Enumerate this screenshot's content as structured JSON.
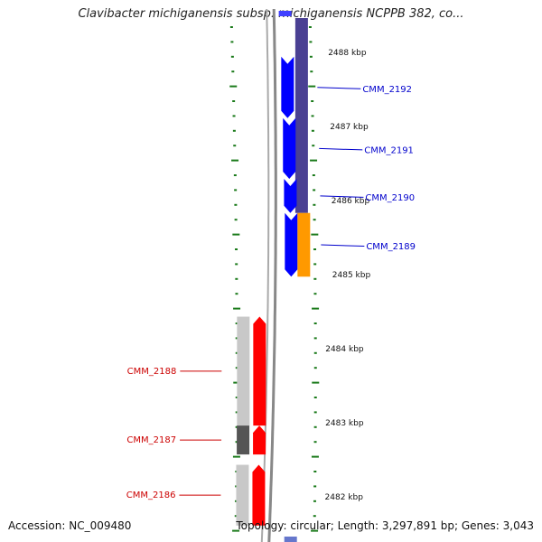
{
  "title": "Clavibacter michiganensis subsp. michiganensis NCPPB 382, co...",
  "footer": {
    "accession": "Accession: NC_009480",
    "summary": "Topology: circular; Length: 3,297,891 bp; Genes: 3,043"
  },
  "colors": {
    "forward_cds": "#0000ff",
    "forward_cds_light": "#3f3fff",
    "reverse_cds": "#ff0000",
    "forward_track": "#4a4093",
    "forward_track_hi": "#3a3289",
    "orange_feature": "#ff9900",
    "reverse_track": "#c8c8c8",
    "reverse_track_dark": "#555555",
    "tick": "#1a7a1a",
    "backbone": "#888888",
    "forward_label": "#0000cc",
    "reverse_label": "#cc0000"
  },
  "ruler": {
    "unit": "kbp",
    "labels": [
      {
        "text": "2488 kbp",
        "kbp": 2488
      },
      {
        "text": "2487 kbp",
        "kbp": 2487
      },
      {
        "text": "2486 kbp",
        "kbp": 2486
      },
      {
        "text": "2485 kbp",
        "kbp": 2485
      },
      {
        "text": "2484 kbp",
        "kbp": 2484
      },
      {
        "text": "2483 kbp",
        "kbp": 2483
      },
      {
        "text": "2482 kbp",
        "kbp": 2482
      }
    ]
  },
  "genes": [
    {
      "name": "CMM_2192",
      "strand": "+",
      "start_kbp": 2487.1,
      "end_kbp": 2487.93
    },
    {
      "name": "CMM_2191",
      "strand": "+",
      "start_kbp": 2486.28,
      "end_kbp": 2487.1
    },
    {
      "name": "CMM_2190",
      "strand": "+",
      "start_kbp": 2485.82,
      "end_kbp": 2486.28
    },
    {
      "name": "CMM_2189",
      "strand": "+",
      "start_kbp": 2484.96,
      "end_kbp": 2485.82
    },
    {
      "name": "CMM_2188",
      "strand": "-",
      "start_kbp": 2482.95,
      "end_kbp": 2484.42
    },
    {
      "name": "CMM_2187",
      "strand": "-",
      "start_kbp": 2482.56,
      "end_kbp": 2482.95
    },
    {
      "name": "CMM_2186",
      "strand": "-",
      "start_kbp": 2481.6,
      "end_kbp": 2482.42
    }
  ]
}
